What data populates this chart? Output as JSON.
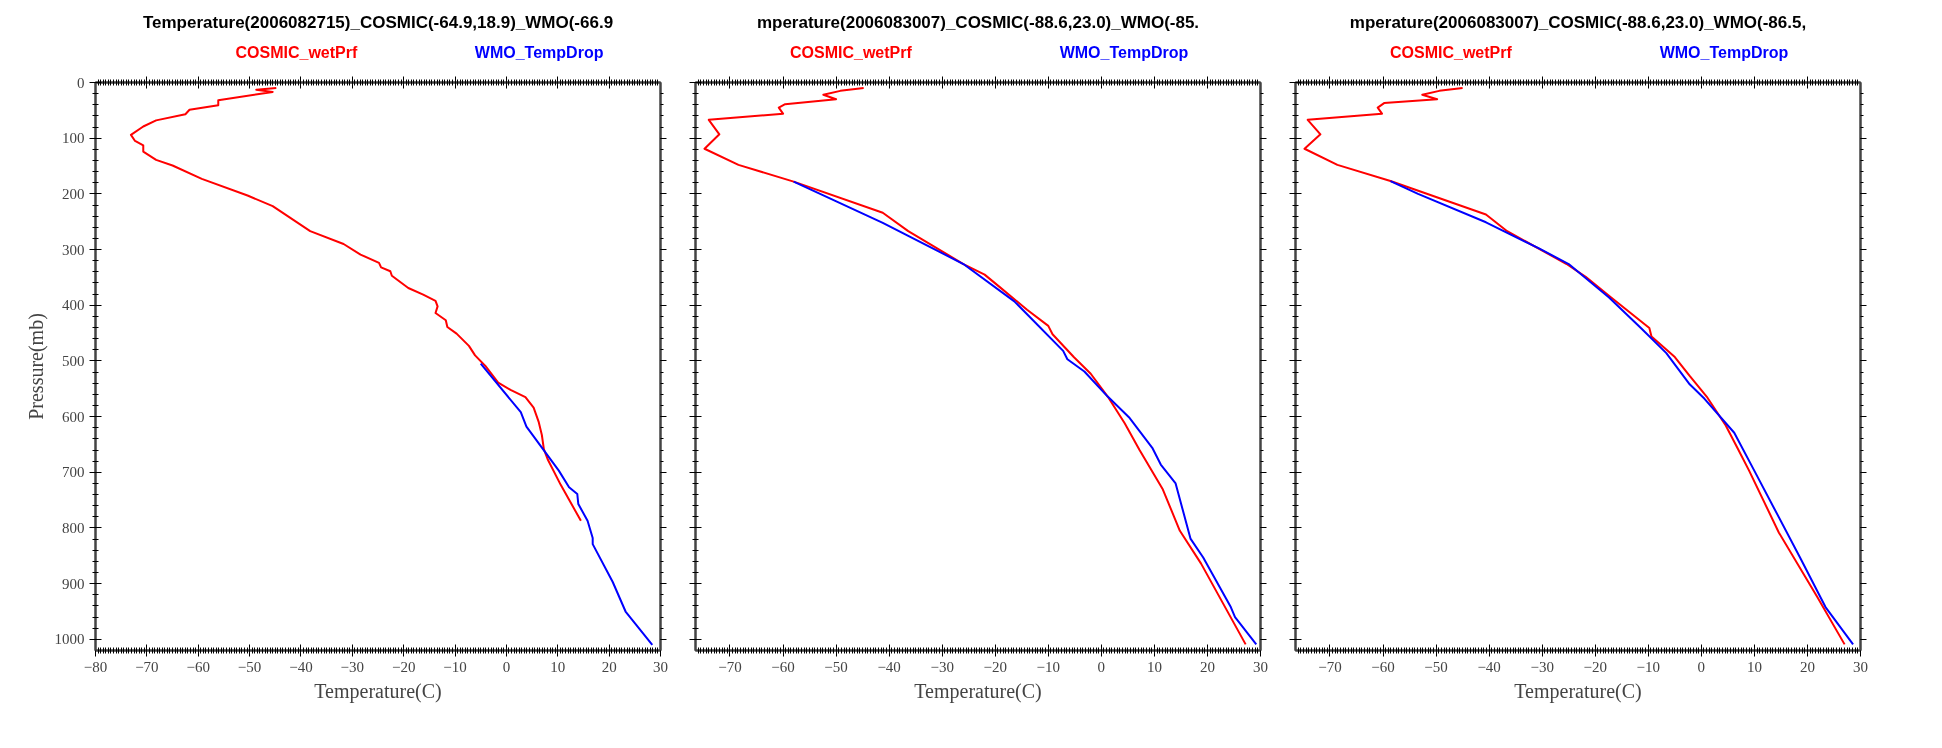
{
  "chart_data": [
    {
      "type": "line",
      "title": "Temperature(2006082715)_COSMIC(-64.9,18.9)_WMO(-66.9",
      "xlabel": "Temperature(C)",
      "ylabel": "Pressure(mb)",
      "xlim": [
        -80,
        30
      ],
      "ylim": [
        1020,
        0
      ],
      "xticks": [
        -80,
        -70,
        -60,
        -50,
        -40,
        -30,
        -20,
        -10,
        0,
        10,
        20,
        30
      ],
      "yticks": [
        0,
        100,
        200,
        300,
        400,
        500,
        600,
        700,
        800,
        900,
        1000
      ],
      "grid": false,
      "series": [
        {
          "name": "COSMIC_wetPrf",
          "color": "#ff0000",
          "x": [
            -44.8,
            -48.7,
            -45.5,
            -56.1,
            -56.1,
            -61.7,
            -62.5,
            -68.2,
            -70.7,
            -73.1,
            -72.3,
            -70.7,
            -70.7,
            -68.2,
            -65,
            -59.3,
            -50.4,
            -45.5,
            -38.2,
            -31.7,
            -28.4,
            -24.8,
            -24.4,
            -22.6,
            -22.3,
            -19.1,
            -16.2,
            -13.8,
            -13.4,
            -13.8,
            -11.8,
            -11.5,
            -9.7,
            -7.3,
            -6.1,
            -4.1,
            -1.6,
            0.8,
            3.7,
            5.3,
            6.3,
            6.9,
            7.3,
            8.1,
            10.6,
            14.5
          ],
          "values": [
            10,
            13,
            17,
            32,
            41,
            49,
            57,
            68,
            79,
            94,
            105,
            113,
            124,
            139,
            149,
            173,
            203,
            222,
            267,
            290,
            309,
            324,
            332,
            339,
            347,
            369,
            381,
            392,
            402,
            414,
            427,
            439,
            451,
            473,
            490,
            509,
            539,
            552,
            565,
            584,
            610,
            633,
            659,
            678,
            723,
            787
          ]
        },
        {
          "name": "WMO_TempDrop",
          "color": "#0000ff",
          "x": [
            -5.0,
            2.8,
            3.9,
            10.2,
            12.2,
            13.8,
            14.0,
            15.8,
            16.8,
            16.8,
            20.7,
            23.2,
            28.4
          ],
          "values": [
            505,
            592,
            618,
            697,
            727,
            739,
            757,
            787,
            818,
            829,
            897,
            950,
            1010
          ]
        }
      ]
    },
    {
      "type": "line",
      "title": "mperature(2006083007)_COSMIC(-88.6,23.0)_WMO(-85.",
      "xlabel": "Temperature(C)",
      "xlim": [
        -76.5,
        30
      ],
      "ylim": [
        1020,
        0
      ],
      "xticks": [
        -70,
        -60,
        -50,
        -40,
        -30,
        -20,
        -10,
        0,
        10,
        20,
        30
      ],
      "yticks": [
        0,
        100,
        200,
        300,
        400,
        500,
        600,
        700,
        800,
        900,
        1000
      ],
      "tick_labels": "x",
      "grid": false,
      "series": [
        {
          "name": "COSMIC_wetPrf",
          "color": "#ff0000",
          "x": [
            -44.8,
            -49.2,
            -52.4,
            -50,
            -59.6,
            -60.8,
            -60,
            -74,
            -72,
            -74.8,
            -68.4,
            -58,
            -41.2,
            -36.4,
            -26,
            -22,
            -19.2,
            -14,
            -10,
            -9.2,
            -5.2,
            -2,
            1.2,
            4.4,
            7.2,
            11.6,
            14.8,
            18.8,
            27.2
          ],
          "values": [
            10,
            15,
            22,
            30,
            39,
            45,
            56,
            67,
            93,
            119,
            148,
            178,
            234,
            267,
            326,
            345,
            367,
            408,
            437,
            452,
            493,
            523,
            564,
            612,
            660,
            731,
            805,
            864,
            1009
          ]
        },
        {
          "name": "WMO_TempDrop",
          "color": "#0000ff",
          "x": [
            -58,
            -41.2,
            -26,
            -16.4,
            -7.2,
            -6.4,
            -3.2,
            1.2,
            5.2,
            9.6,
            11.2,
            14,
            16.8,
            19.2,
            24.4,
            25.2,
            29.2
          ],
          "values": [
            178,
            252,
            326,
            393,
            482,
            497,
            519,
            564,
            601,
            656,
            686,
            720,
            819,
            853,
            942,
            960,
            1009
          ]
        }
      ]
    },
    {
      "type": "line",
      "title": "mperature(2006083007)_COSMIC(-88.6,23.0)_WMO(-86.5,",
      "xlabel": "Temperature(C)",
      "xlim": [
        -76.5,
        30
      ],
      "ylim": [
        1020,
        0
      ],
      "xticks": [
        -70,
        -60,
        -50,
        -40,
        -30,
        -20,
        -10,
        0,
        10,
        20,
        30
      ],
      "yticks": [
        0,
        100,
        200,
        300,
        400,
        500,
        600,
        700,
        800,
        900,
        1000
      ],
      "tick_labels": "x",
      "grid": false,
      "series": [
        {
          "name": "COSMIC_wetPrf",
          "color": "#ff0000",
          "x": [
            -45,
            -49.4,
            -52.6,
            -49.8,
            -59.8,
            -61,
            -60.2,
            -74.2,
            -71.8,
            -74.8,
            -68.6,
            -58.6,
            -40.6,
            -36.6,
            -25.4,
            -21.8,
            -17,
            -9.8,
            -9.4,
            -5,
            -2.2,
            1,
            4.6,
            7,
            9,
            14.6,
            21.8,
            27
          ],
          "values": [
            10,
            15,
            22,
            30,
            37,
            45,
            56,
            67,
            93,
            119,
            148,
            177,
            237,
            267,
            326,
            349,
            386,
            441,
            456,
            493,
            527,
            564,
            616,
            660,
            697,
            808,
            923,
            1009
          ]
        },
        {
          "name": "WMO_TempDrop",
          "color": "#0000ff",
          "x": [
            -58.6,
            -53.4,
            -40.6,
            -30.6,
            -25,
            -17.4,
            -11.4,
            -6.6,
            -2.2,
            0.6,
            6.2,
            10.2,
            18.6,
            23.4,
            28.6
          ],
          "values": [
            177,
            200,
            251,
            298,
            326,
            386,
            441,
            486,
            542,
            568,
            629,
            701,
            853,
            942,
            1009
          ]
        }
      ]
    }
  ]
}
